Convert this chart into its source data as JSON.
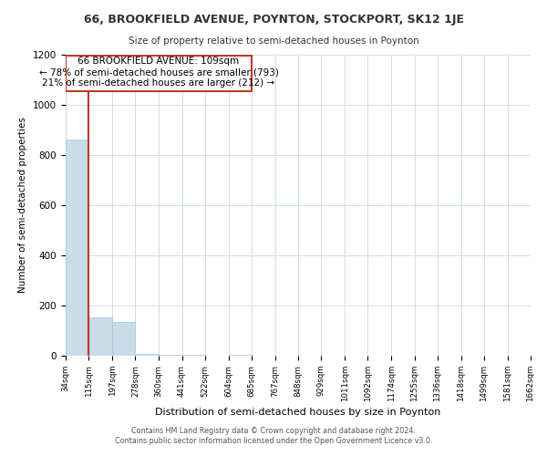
{
  "title": "66, BROOKFIELD AVENUE, POYNTON, STOCKPORT, SK12 1JE",
  "subtitle": "Size of property relative to semi-detached houses in Poynton",
  "xlabel": "Distribution of semi-detached houses by size in Poynton",
  "ylabel": "Number of semi-detached properties",
  "footer_line1": "Contains HM Land Registry data © Crown copyright and database right 2024.",
  "footer_line2": "Contains public sector information licensed under the Open Government Licence v3.0.",
  "annotation_line1": "66 BROOKFIELD AVENUE: 109sqm",
  "annotation_line2": "← 78% of semi-detached houses are smaller (793)",
  "annotation_line3": "21% of semi-detached houses are larger (212) →",
  "property_line_x": 115,
  "bar_edges": [
    34,
    115,
    197,
    278,
    360,
    441,
    522,
    604,
    685,
    767,
    848,
    929,
    1011,
    1092,
    1174,
    1255,
    1336,
    1418,
    1499,
    1581,
    1662
  ],
  "bar_heights": [
    862,
    152,
    134,
    7,
    5,
    2,
    1,
    2,
    0,
    0,
    0,
    0,
    0,
    0,
    0,
    0,
    0,
    0,
    0,
    0
  ],
  "highlight_bar_index": 0,
  "bar_color_normal": "#c8dcea",
  "bar_edge_color": "#a8c4d8",
  "highlight_line_color": "#c0392b",
  "annotation_box_color": "#c0392b",
  "annotation_box_facecolor": "#ffffff",
  "ylim": [
    0,
    1200
  ],
  "yticks": [
    0,
    200,
    400,
    600,
    800,
    1000,
    1200
  ],
  "bg_color": "#ffffff",
  "grid_color": "#d0dde8"
}
